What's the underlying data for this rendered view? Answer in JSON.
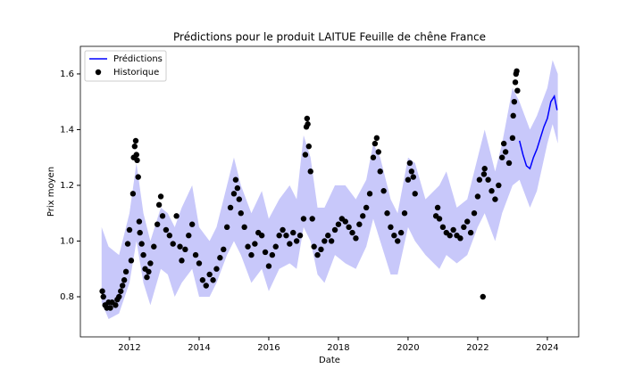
{
  "chart_data": {
    "type": "line",
    "title": "Prédictions pour le produit LAITUE Feuille de chêne France",
    "x_label": "Date",
    "y_label": "Prix moyen",
    "xlim": [
      2010.59,
      2024.9
    ],
    "ylim": [
      0.656,
      1.699
    ],
    "xticks": [
      2012,
      2014,
      2016,
      2018,
      2020,
      2022,
      2024
    ],
    "yticks": [
      0.8,
      {
        "value": 1,
        "label": "1.0"
      },
      1.2,
      1.4,
      1.6
    ],
    "legend": "upper left",
    "interval": {
      "color": "#c8c8fa",
      "x": [
        2011.2,
        2011.4,
        2011.7,
        2012.0,
        2012.2,
        2012.4,
        2012.6,
        2012.9,
        2013.1,
        2013.3,
        2013.5,
        2013.8,
        2014.0,
        2014.3,
        2014.5,
        2014.8,
        2015.0,
        2015.2,
        2015.5,
        2015.8,
        2016.0,
        2016.3,
        2016.6,
        2016.8,
        2017.0,
        2017.2,
        2017.4,
        2017.6,
        2017.9,
        2018.2,
        2018.5,
        2018.8,
        2019.0,
        2019.2,
        2019.5,
        2019.7,
        2020.0,
        2020.2,
        2020.5,
        2020.9,
        2021.1,
        2021.4,
        2021.7,
        2022.0,
        2022.2,
        2022.5,
        2022.7,
        2023.0,
        2023.2,
        2023.5,
        2023.7,
        2024.0,
        2024.15,
        2024.3
      ],
      "lower": [
        0.78,
        0.72,
        0.74,
        0.85,
        1.0,
        0.85,
        0.77,
        0.9,
        0.88,
        0.8,
        0.85,
        0.9,
        0.8,
        0.8,
        0.85,
        0.95,
        1.0,
        0.95,
        0.85,
        0.9,
        0.82,
        0.9,
        0.92,
        0.9,
        1.05,
        1.0,
        0.88,
        0.85,
        0.95,
        0.92,
        0.9,
        0.98,
        1.08,
        1.0,
        0.88,
        0.88,
        1.05,
        1.0,
        0.95,
        0.9,
        0.95,
        0.92,
        0.95,
        1.05,
        1.1,
        1.0,
        1.1,
        1.2,
        1.22,
        1.12,
        1.18,
        1.35,
        1.42,
        1.35
      ],
      "upper": [
        1.05,
        0.98,
        0.95,
        1.1,
        1.28,
        1.1,
        1.0,
        1.12,
        1.1,
        1.05,
        1.12,
        1.2,
        1.05,
        1.0,
        1.05,
        1.2,
        1.3,
        1.2,
        1.1,
        1.18,
        1.08,
        1.15,
        1.2,
        1.15,
        1.38,
        1.3,
        1.12,
        1.12,
        1.2,
        1.2,
        1.15,
        1.22,
        1.35,
        1.3,
        1.15,
        1.1,
        1.3,
        1.28,
        1.15,
        1.2,
        1.25,
        1.12,
        1.15,
        1.3,
        1.4,
        1.25,
        1.35,
        1.55,
        1.5,
        1.4,
        1.45,
        1.55,
        1.65,
        1.6
      ]
    },
    "series": [
      {
        "name": "Prédictions",
        "type": "line",
        "color": "#0000ff",
        "x": [
          2023.2,
          2023.3,
          2023.4,
          2023.5,
          2023.6,
          2023.7,
          2023.8,
          2023.9,
          2024.0,
          2024.1,
          2024.2,
          2024.28
        ],
        "values": [
          1.36,
          1.31,
          1.27,
          1.26,
          1.3,
          1.33,
          1.37,
          1.41,
          1.44,
          1.5,
          1.52,
          1.47
        ]
      },
      {
        "name": "Historique",
        "type": "scatter",
        "color": "#000000",
        "x": [
          2011.22,
          2011.25,
          2011.3,
          2011.35,
          2011.4,
          2011.45,
          2011.5,
          2011.6,
          2011.65,
          2011.7,
          2011.75,
          2011.8,
          2011.85,
          2011.9,
          2011.95,
          2012.0,
          2012.05,
          2012.1,
          2012.12,
          2012.15,
          2012.18,
          2012.2,
          2012.22,
          2012.25,
          2012.28,
          2012.3,
          2012.35,
          2012.4,
          2012.45,
          2012.5,
          2012.55,
          2012.6,
          2012.7,
          2012.8,
          2012.85,
          2012.9,
          2012.95,
          2013.05,
          2013.15,
          2013.25,
          2013.35,
          2013.45,
          2013.5,
          2013.6,
          2013.7,
          2013.8,
          2013.9,
          2014.0,
          2014.1,
          2014.2,
          2014.3,
          2014.4,
          2014.5,
          2014.6,
          2014.7,
          2014.8,
          2014.9,
          2015.0,
          2015.05,
          2015.1,
          2015.15,
          2015.2,
          2015.3,
          2015.4,
          2015.5,
          2015.6,
          2015.7,
          2015.8,
          2015.9,
          2016.0,
          2016.1,
          2016.2,
          2016.3,
          2016.4,
          2016.5,
          2016.6,
          2016.7,
          2016.8,
          2016.9,
          2017.0,
          2017.05,
          2017.08,
          2017.1,
          2017.12,
          2017.15,
          2017.2,
          2017.25,
          2017.3,
          2017.4,
          2017.5,
          2017.6,
          2017.7,
          2017.8,
          2017.9,
          2018.0,
          2018.1,
          2018.2,
          2018.3,
          2018.4,
          2018.5,
          2018.6,
          2018.7,
          2018.8,
          2018.9,
          2019.0,
          2019.05,
          2019.1,
          2019.15,
          2019.2,
          2019.3,
          2019.4,
          2019.5,
          2019.6,
          2019.7,
          2019.8,
          2019.9,
          2020.0,
          2020.05,
          2020.1,
          2020.15,
          2020.2,
          2020.8,
          2020.85,
          2020.9,
          2021.0,
          2021.1,
          2021.2,
          2021.3,
          2021.4,
          2021.5,
          2021.6,
          2021.7,
          2021.8,
          2021.9,
          2022.0,
          2022.05,
          2022.15,
          2022.18,
          2022.2,
          2022.3,
          2022.4,
          2022.5,
          2022.6,
          2022.7,
          2022.75,
          2022.8,
          2022.9,
          2023.0,
          2023.02,
          2023.05,
          2023.08,
          2023.1,
          2023.12,
          2023.14
        ],
        "values": [
          0.82,
          0.8,
          0.77,
          0.76,
          0.78,
          0.76,
          0.78,
          0.77,
          0.79,
          0.8,
          0.82,
          0.84,
          0.86,
          0.89,
          0.99,
          1.04,
          0.93,
          1.17,
          1.3,
          1.34,
          1.36,
          1.31,
          1.29,
          1.23,
          1.07,
          1.03,
          0.99,
          0.95,
          0.9,
          0.87,
          0.89,
          0.92,
          0.98,
          1.06,
          1.13,
          1.16,
          1.09,
          1.04,
          1.02,
          0.99,
          1.09,
          0.98,
          0.93,
          0.97,
          1.02,
          1.06,
          0.95,
          0.92,
          0.86,
          0.84,
          0.88,
          0.86,
          0.9,
          0.94,
          0.97,
          1.05,
          1.12,
          1.17,
          1.22,
          1.19,
          1.15,
          1.1,
          1.05,
          0.98,
          0.95,
          0.99,
          1.03,
          1.02,
          0.96,
          0.91,
          0.95,
          0.98,
          1.02,
          1.04,
          1.02,
          0.99,
          1.03,
          1.0,
          1.02,
          1.08,
          1.31,
          1.41,
          1.44,
          1.42,
          1.34,
          1.25,
          1.08,
          0.98,
          0.95,
          0.97,
          1.0,
          1.02,
          1.0,
          1.04,
          1.06,
          1.08,
          1.07,
          1.05,
          1.03,
          1.01,
          1.06,
          1.09,
          1.12,
          1.17,
          1.3,
          1.35,
          1.37,
          1.32,
          1.25,
          1.18,
          1.1,
          1.05,
          1.02,
          1.0,
          1.03,
          1.1,
          1.22,
          1.28,
          1.25,
          1.23,
          1.17,
          1.09,
          1.12,
          1.08,
          1.05,
          1.03,
          1.02,
          1.04,
          1.02,
          1.01,
          1.05,
          1.07,
          1.03,
          1.1,
          1.16,
          1.22,
          0.8,
          1.24,
          1.26,
          1.22,
          1.18,
          1.15,
          1.2,
          1.3,
          1.35,
          1.32,
          1.28,
          1.37,
          1.45,
          1.5,
          1.57,
          1.6,
          1.61,
          1.54
        ]
      }
    ]
  }
}
